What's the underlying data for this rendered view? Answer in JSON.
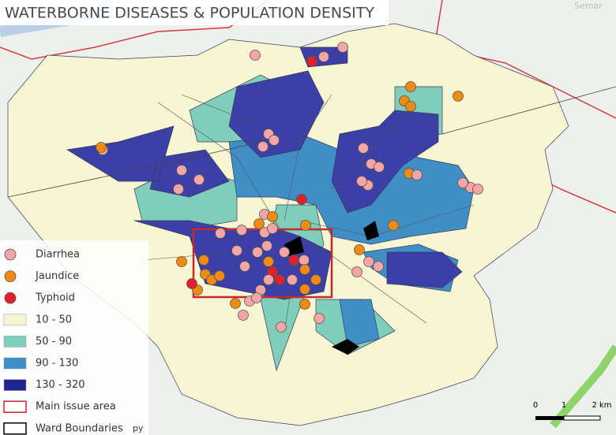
{
  "title": "WATERBORNE DISEASES & POPULATION DENSITY",
  "map_labels": [
    "Semar",
    "py"
  ],
  "legend": [
    "Diarrhea",
    "Jaundice",
    "Typhoid",
    "10 - 50",
    "50 - 90",
    "90 - 130",
    "130 - 320",
    "Main issue area",
    "Ward Boundaries"
  ],
  "scale_bar": [
    "0",
    "1",
    "2 km"
  ]
}
